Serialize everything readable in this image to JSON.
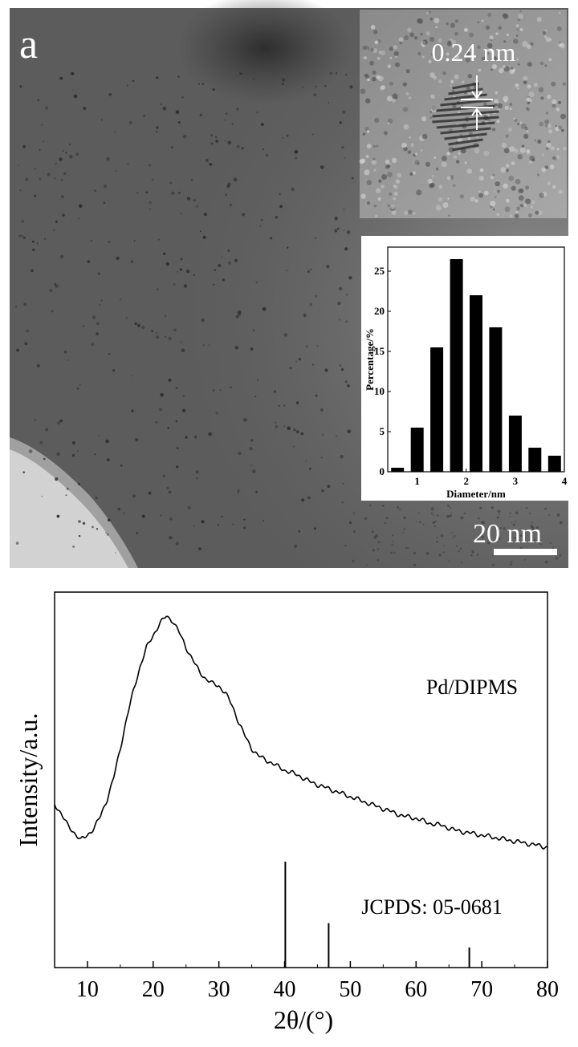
{
  "panel_a": {
    "label": "a",
    "lattice_label": "0.24 nm",
    "scale_bar_label": "20 nm"
  },
  "chart_data": [
    {
      "type": "bar",
      "xlabel": "Diameter/nm",
      "ylabel": "Percentage/%",
      "x": [
        0.6,
        1.0,
        1.4,
        1.8,
        2.2,
        2.6,
        3.0,
        3.4,
        3.8
      ],
      "values": [
        0.5,
        5.5,
        15.5,
        26.5,
        22,
        18,
        7,
        3,
        2
      ],
      "xlim": [
        0.4,
        4.0
      ],
      "ylim": [
        0,
        28
      ],
      "xticks": [
        1,
        2,
        3,
        4
      ],
      "yticks": [
        0,
        5,
        10,
        15,
        20,
        25
      ],
      "color": "#000000"
    },
    {
      "type": "line",
      "xlabel": "2θ/(°)",
      "ylabel": "Intensity/a.u.",
      "xlim": [
        5,
        80
      ],
      "xticks": [
        10,
        20,
        30,
        40,
        50,
        60,
        70,
        80
      ],
      "series": [
        {
          "name": "Pd/DIPMS",
          "x": [
            5,
            6,
            7,
            8,
            9,
            10,
            11,
            12,
            13,
            14,
            15,
            16,
            17,
            18,
            19,
            20,
            21,
            22,
            23,
            24,
            25,
            26,
            27,
            28,
            29,
            30,
            31,
            32,
            33,
            34,
            35,
            36,
            38,
            40,
            42,
            44,
            46,
            48,
            50,
            52,
            54,
            56,
            58,
            60,
            62,
            64,
            66,
            68,
            70,
            72,
            74,
            76,
            78,
            80
          ],
          "values": [
            0.22,
            0.18,
            0.13,
            0.1,
            0.07,
            0.09,
            0.12,
            0.17,
            0.24,
            0.33,
            0.45,
            0.58,
            0.69,
            0.79,
            0.87,
            0.92,
            0.97,
            1.0,
            0.98,
            0.93,
            0.87,
            0.82,
            0.77,
            0.74,
            0.72,
            0.71,
            0.68,
            0.63,
            0.56,
            0.5,
            0.45,
            0.42,
            0.39,
            0.36,
            0.34,
            0.31,
            0.29,
            0.27,
            0.25,
            0.23,
            0.21,
            0.19,
            0.17,
            0.16,
            0.14,
            0.13,
            0.11,
            0.1,
            0.09,
            0.08,
            0.07,
            0.06,
            0.05,
            0.04
          ],
          "color": "#000000"
        }
      ],
      "reference": {
        "name": "JCPDS: 05-0681",
        "x": [
          40.1,
          46.7,
          68.1
        ],
        "relative_intensity": [
          1.0,
          0.42,
          0.19
        ]
      }
    }
  ]
}
